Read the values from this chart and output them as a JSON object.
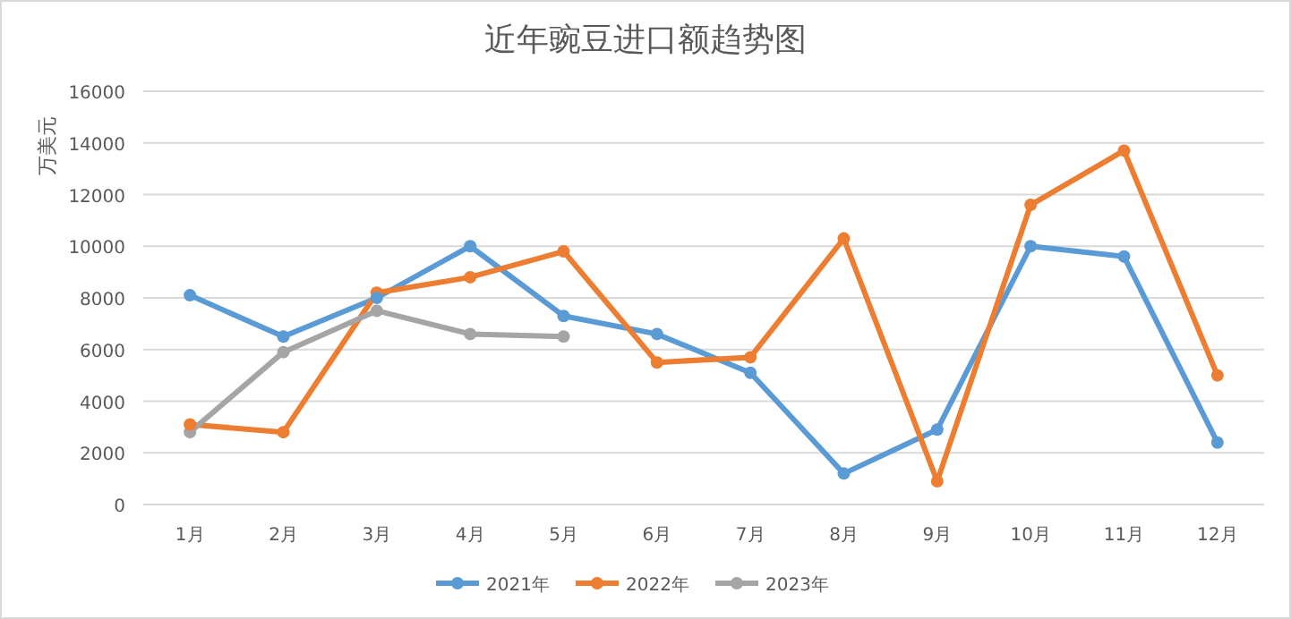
{
  "chart_data": {
    "type": "line",
    "title": "近年豌豆进口额趋势图",
    "ylabel": "万美元",
    "categories": [
      "1月",
      "2月",
      "3月",
      "4月",
      "5月",
      "6月",
      "7月",
      "8月",
      "9月",
      "10月",
      "11月",
      "12月"
    ],
    "series": [
      {
        "name": "2021年",
        "color": "#5b9bd5",
        "values": [
          8100,
          6500,
          8000,
          10000,
          7300,
          6600,
          5100,
          1200,
          2900,
          10000,
          9600,
          2400
        ]
      },
      {
        "name": "2022年",
        "color": "#ed7d31",
        "values": [
          3100,
          2800,
          8200,
          8800,
          9800,
          5500,
          5700,
          10300,
          900,
          11600,
          13700,
          5000
        ]
      },
      {
        "name": "2023年",
        "color": "#a5a5a5",
        "values": [
          2800,
          5900,
          7500,
          6600,
          6500,
          null,
          null,
          null,
          null,
          null,
          null,
          null
        ]
      }
    ],
    "ylim": [
      0,
      16000
    ],
    "yticks": [
      0,
      2000,
      4000,
      6000,
      8000,
      10000,
      12000,
      14000,
      16000
    ],
    "grid": "y",
    "legend": "bottom",
    "marker": "circle",
    "line_style": "solid"
  }
}
